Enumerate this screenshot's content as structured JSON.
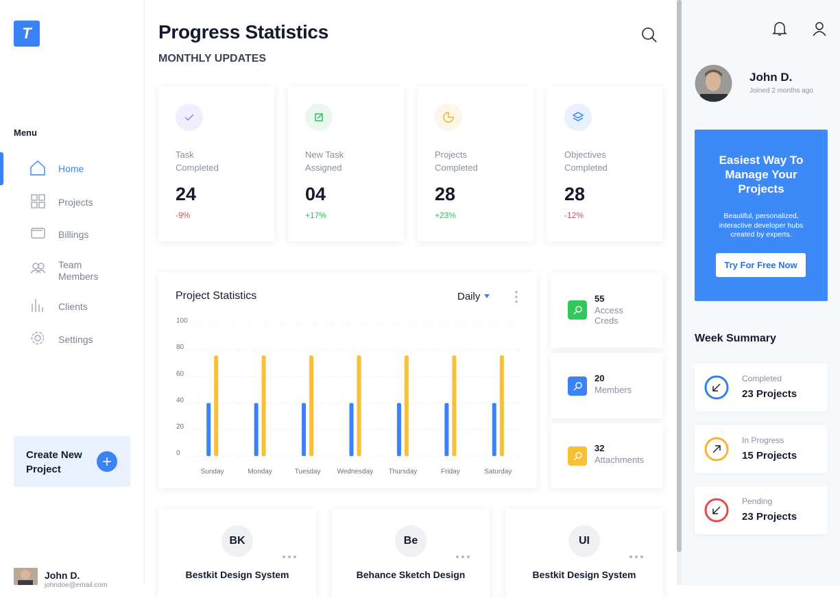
{
  "sidebar": {
    "logo": "T",
    "menu_title": "Menu",
    "menu": [
      "Home",
      "Projects",
      "Billings",
      "Team Members",
      "Clients",
      "Settings"
    ],
    "cta": "Create New Project",
    "user": {
      "name": "John D.",
      "email": "johndoe@email.com"
    }
  },
  "header": {
    "title": "Progress Statistics",
    "subtitle": "MONTHLY UPDATES"
  },
  "stats": [
    {
      "label": "Task Completed",
      "value": "24",
      "change": "-9%",
      "color": "#e5484d",
      "icon_color": "#8b7cf6",
      "icon_bg": "#f1effe"
    },
    {
      "label": "New Task Assigned",
      "value": "04",
      "change": "+17%",
      "color": "#22c55e",
      "icon_color": "#22c55e",
      "icon_bg": "#e9f9ef"
    },
    {
      "label": "Projects Completed",
      "value": "28",
      "change": "+23%",
      "color": "#22c55e",
      "icon_color": "#f5b42a",
      "icon_bg": "#fef6e6"
    },
    {
      "label": "Objectives Completed",
      "value": "28",
      "change": "-12%",
      "color": "#e5484d",
      "icon_color": "#3b82f6",
      "icon_bg": "#e8f1fe"
    }
  ],
  "chart_data": {
    "type": "bar",
    "title": "Project Statistics",
    "filter": "Daily",
    "categories": [
      "Sunday",
      "Monday",
      "Tuesday",
      "Wednesday",
      "Thursday",
      "Friday",
      "Saturday"
    ],
    "series": [
      {
        "color": "#3b82f6",
        "values": [
          40,
          40,
          40,
          40,
          40,
          40,
          40
        ]
      },
      {
        "color": "#fbbf36",
        "values": [
          76,
          76,
          76,
          76,
          76,
          76,
          76
        ]
      }
    ],
    "ylim": [
      0,
      100
    ],
    "yticks": [
      0,
      20,
      40,
      60,
      80,
      100
    ],
    "grid": true
  },
  "side_cards": [
    {
      "value": "55",
      "label": "Access Creds",
      "color": "#34c759"
    },
    {
      "value": "20",
      "label": "Members",
      "color": "#3b82f6"
    },
    {
      "value": "32",
      "label": "Attachments",
      "color": "#fbbf36"
    }
  ],
  "projects": [
    {
      "initials": "BK",
      "name": "Bestkit Design System"
    },
    {
      "initials": "Be",
      "name": "Behance Sketch Design"
    },
    {
      "initials": "UI",
      "name": "Bestkit Design System"
    }
  ],
  "profile": {
    "name": "John D.",
    "joined": "Joined 2 months ago"
  },
  "promo": {
    "title": "Easiest Way To Manage Your Projects",
    "text": "Beautiful, personalized, interactive developer hubs created by experts.",
    "button": "Try For Free Now"
  },
  "week_summary": {
    "title": "Week Summary",
    "items": [
      {
        "label": "Completed",
        "value": "23 Projects",
        "color": "#2f80ed"
      },
      {
        "label": "In Progress",
        "value": "15 Projects",
        "color": "#f5b42a"
      },
      {
        "label": "Pending",
        "value": "23 Projects",
        "color": "#e5484d"
      }
    ]
  }
}
